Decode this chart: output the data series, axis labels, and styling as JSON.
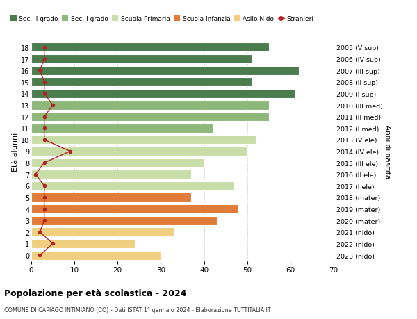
{
  "ages": [
    0,
    1,
    2,
    3,
    4,
    5,
    6,
    7,
    8,
    9,
    10,
    11,
    12,
    13,
    14,
    15,
    16,
    17,
    18
  ],
  "right_labels": [
    "2023 (nido)",
    "2022 (nido)",
    "2021 (nido)",
    "2020 (mater)",
    "2019 (mater)",
    "2018 (mater)",
    "2017 (I ele)",
    "2016 (II ele)",
    "2015 (III ele)",
    "2014 (IV ele)",
    "2013 (V ele)",
    "2012 (I med)",
    "2011 (II med)",
    "2010 (III med)",
    "2009 (I sup)",
    "2008 (II sup)",
    "2007 (III sup)",
    "2006 (IV sup)",
    "2005 (V sup)"
  ],
  "bar_values": [
    30,
    24,
    33,
    43,
    48,
    37,
    47,
    37,
    40,
    50,
    52,
    42,
    55,
    55,
    61,
    51,
    62,
    51,
    55
  ],
  "stranieri_values": [
    2,
    5,
    2,
    3,
    3,
    3,
    3,
    1,
    3,
    9,
    3,
    3,
    3,
    5,
    3,
    3,
    2,
    3,
    3
  ],
  "bar_colors": [
    "#f0d080",
    "#f0d080",
    "#f0d080",
    "#e07b39",
    "#e07b39",
    "#e07b39",
    "#c8dda8",
    "#c8dda8",
    "#c8dda8",
    "#c8dda8",
    "#c8dda8",
    "#8db87a",
    "#8db87a",
    "#8db87a",
    "#4a7c4e",
    "#4a7c4e",
    "#4a7c4e",
    "#4a7c4e",
    "#4a7c4e"
  ],
  "legend_labels": [
    "Sec. II grado",
    "Sec. I grado",
    "Scuola Primaria",
    "Scuola Infanzia",
    "Asilo Nido",
    "Stranieri"
  ],
  "legend_colors": [
    "#4a7c4e",
    "#8db87a",
    "#c8dda8",
    "#e07b39",
    "#f0d080",
    "#b22222"
  ],
  "title": "Popolazione per età scolastica - 2024",
  "subtitle": "COMUNE DI CAPIAGO INTIMIANO (CO) - Dati ISTAT 1° gennaio 2024 - Elaborazione TUTTITALIA.IT",
  "ylabel": "Età alunni",
  "right_ylabel": "Anni di nascita",
  "xlim": [
    0,
    70
  ],
  "xticks": [
    0,
    10,
    20,
    30,
    40,
    50,
    60,
    70
  ],
  "background_color": "#ffffff",
  "grid_color": "#cccccc",
  "stranieri_color": "#b22222",
  "bar_height": 0.78
}
